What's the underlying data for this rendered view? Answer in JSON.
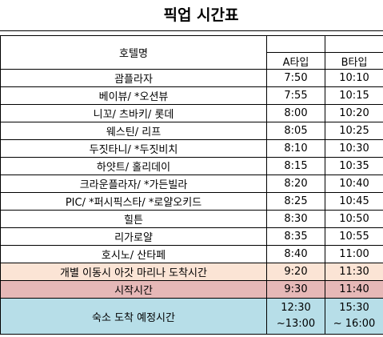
{
  "title": "픽업 시간표",
  "header": {
    "hotel": "호텔명",
    "a_type": "A타입",
    "b_type": "B타입"
  },
  "rows": [
    {
      "hotel": "괌플라자",
      "a": "7:50",
      "b": "10:10"
    },
    {
      "hotel": "베이뷰/ *오션뷰",
      "a": "7:55",
      "b": "10:15"
    },
    {
      "hotel": "니꼬/ 츠바키/ 롯데",
      "a": "8:00",
      "b": "10:20"
    },
    {
      "hotel": "웨스틴/ 리프",
      "a": "8:05",
      "b": "10:25"
    },
    {
      "hotel": "두짓타니/ *두짓비치",
      "a": "8:10",
      "b": "10:30"
    },
    {
      "hotel": "하얏트/ 홀리데이",
      "a": "8:15",
      "b": "10:35"
    },
    {
      "hotel": "크라운플라자/ *가든빌라",
      "a": "8:20",
      "b": "10:40"
    },
    {
      "hotel": "PIC/ *퍼시픽스타/ *로얄오키드",
      "a": "8:25",
      "b": "10:45"
    },
    {
      "hotel": "힐튼",
      "a": "8:30",
      "b": "10:50"
    },
    {
      "hotel": "리가로얄",
      "a": "8:35",
      "b": "10:55"
    },
    {
      "hotel": "호시노/ 산타페",
      "a": "8:40",
      "b": "11:00"
    },
    {
      "hotel": "개별 이동시 아갓 마리나 도착시간",
      "a": "9:20",
      "b": "11:30"
    },
    {
      "hotel": "시작시간",
      "a": "9:30",
      "b": "11:40"
    }
  ],
  "arrival": {
    "label": "숙소 도착 예정시간",
    "a_line1": "12:30",
    "a_line2": "~13:00",
    "b_line1": "15:30",
    "b_line2": "~ 16:00"
  },
  "colors": {
    "peach": "#fbe4d5",
    "rose": "#e6b8b7",
    "blue": "#b7dee8"
  }
}
